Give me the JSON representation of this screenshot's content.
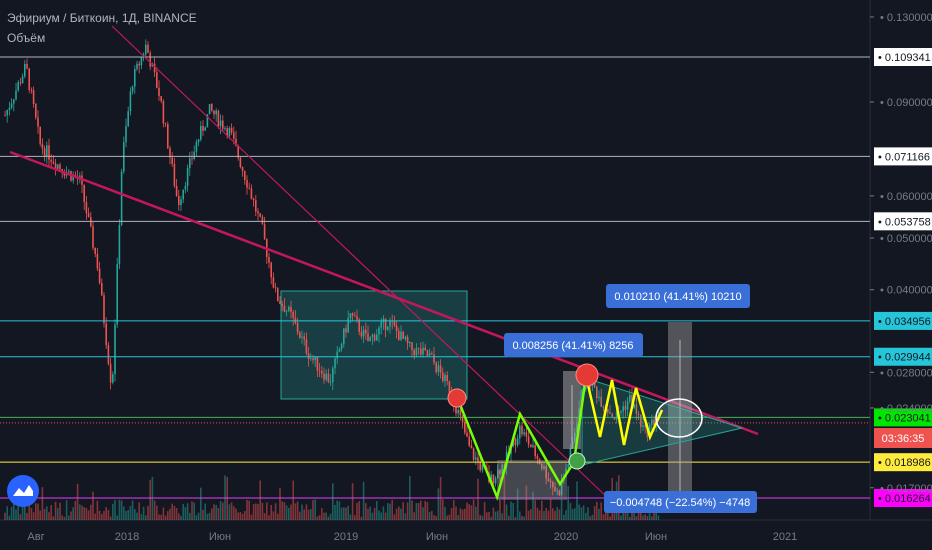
{
  "header": {
    "symbol_line": "Эфириум / Биткоин, 1Д, BINANCE",
    "volume_label": "Объём"
  },
  "chart_data": {
    "type": "candlestick",
    "price_scale": {
      "ticks": [
        "0.130000",
        "0.090000",
        "0.060000",
        "0.050000",
        "0.040000",
        "0.028000",
        "0.024000",
        "0.017000"
      ],
      "ylim": [
        0.0145,
        0.138
      ],
      "log": true
    },
    "time_axis": [
      "Авг",
      "2018",
      "Июн",
      "2019",
      "Июн",
      "2020",
      "Июн",
      "2021"
    ],
    "horizontal_levels": [
      {
        "value": 0.109341,
        "label": "0.109341",
        "color": "#b2b5be",
        "label_bg": "#ffffff",
        "label_fg": "#131722"
      },
      {
        "value": 0.071166,
        "label": "0.071166",
        "color": "#b2b5be",
        "label_bg": "#ffffff",
        "label_fg": "#131722"
      },
      {
        "value": 0.053758,
        "label": "0.053758",
        "color": "#b2b5be",
        "label_bg": "#ffffff",
        "label_fg": "#131722"
      },
      {
        "value": 0.034956,
        "label": "0.034956",
        "color": "#26c6da",
        "label_bg": "#26c6da",
        "label_fg": "#131722"
      },
      {
        "value": 0.029944,
        "label": "0.029944",
        "color": "#26c6da",
        "label_bg": "#26c6da",
        "label_fg": "#131722"
      },
      {
        "value": 0.023041,
        "label": "0.023041",
        "color": "#4caf50",
        "label_bg": "#00e600",
        "label_fg": "#131722"
      },
      {
        "value": 0.018986,
        "label": "0.018986",
        "color": "#ffeb3b",
        "label_bg": "#ffeb3b",
        "label_fg": "#131722"
      },
      {
        "value": 0.016264,
        "label": "0.016264",
        "color": "#e040fb",
        "label_bg": "#ff00ff",
        "label_fg": "#131722"
      }
    ],
    "current_price_timer": "03:36:35",
    "measure_labels": [
      "0.010210 (41.41%) 10210",
      "0.008256 (41.41%) 8256",
      "−0.004748 (−22.54%) −4748"
    ],
    "colors": {
      "background": "#131722",
      "up": "#26a69a",
      "down": "#ef5350",
      "trendline": "#c2185b",
      "zigzag_green": "#76ff03",
      "zigzag_yellow": "#ffff00",
      "measure_box": "#3a6fd8"
    }
  }
}
